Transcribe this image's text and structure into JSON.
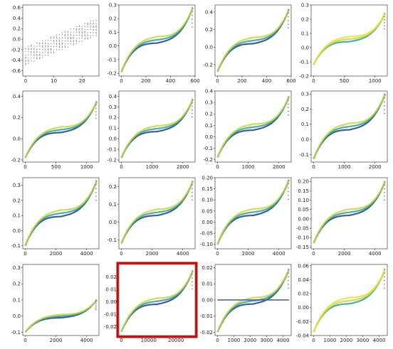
{
  "chart_data": [
    {
      "type": "scatter",
      "shape": "scatter",
      "xlim": [
        -1,
        26
      ],
      "xticks": [
        0,
        10,
        20
      ],
      "ylim": [
        -0.7,
        0.65
      ],
      "yticks": [
        "0.6",
        "0.4",
        "0.2",
        "0.0",
        "-0.2",
        "-0.4",
        "-0.6"
      ],
      "y_min": -0.55,
      "y_max": 0.55,
      "colors": [
        "#888888"
      ]
    },
    {
      "type": "scatter",
      "shape": "sigmoid",
      "xlim": [
        -20,
        600
      ],
      "xticks": [
        0,
        200,
        400,
        600
      ],
      "ylim": [
        -0.22,
        0.3
      ],
      "yticks": [
        "0.3",
        "0.2",
        "0.1",
        "0.0",
        "-0.1",
        "-0.2"
      ],
      "y_min": -0.19,
      "y_max": 0.28,
      "colors": [
        "#1e3f8a",
        "#2aa198",
        "#c6d63a"
      ]
    },
    {
      "type": "scatter",
      "shape": "sigmoid",
      "xlim": [
        -20,
        600
      ],
      "xticks": [
        0,
        200,
        400,
        600
      ],
      "ylim": [
        -0.33,
        0.48
      ],
      "yticks": [
        "0.4",
        "0.2",
        "0.0",
        "-0.2"
      ],
      "y_min": -0.28,
      "y_max": 0.43,
      "colors": [
        "#1e3f8a",
        "#2aa198",
        "#c6d63a"
      ]
    },
    {
      "type": "scatter",
      "shape": "sigmoid",
      "xlim": [
        -40,
        1200
      ],
      "xticks": [
        0,
        500,
        1000
      ],
      "ylim": [
        -0.2,
        0.3
      ],
      "yticks": [
        "0.3",
        "0.2",
        "0.1",
        "0.0",
        "-0.1",
        "-0.2"
      ],
      "y_min": -0.12,
      "y_max": 0.24,
      "colors": [
        "#2aa198",
        "#c6d63a",
        "#e8e03a"
      ]
    },
    {
      "type": "scatter",
      "shape": "sigmoid",
      "xlim": [
        -40,
        1200
      ],
      "xticks": [
        0,
        500,
        1000
      ],
      "ylim": [
        -0.22,
        0.45
      ],
      "yticks": [
        "0.4",
        "0.2",
        "0.0",
        "-0.2"
      ],
      "y_min": -0.18,
      "y_max": 0.35,
      "colors": [
        "#1e3f8a",
        "#2aa198",
        "#c6d63a"
      ]
    },
    {
      "type": "scatter",
      "shape": "sigmoid",
      "xlim": [
        -80,
        2400
      ],
      "xticks": [
        0,
        1000,
        2000
      ],
      "ylim": [
        -0.22,
        0.45
      ],
      "yticks": [
        "0.4",
        "0.3",
        "0.2",
        "0.1",
        "0.0",
        "-0.1",
        "-0.2"
      ],
      "y_min": -0.18,
      "y_max": 0.37,
      "colors": [
        "#1e3f8a",
        "#2aa198",
        "#c6d63a"
      ]
    },
    {
      "type": "scatter",
      "shape": "sigmoid",
      "xlim": [
        -80,
        2400
      ],
      "xticks": [
        0,
        1000,
        2000
      ],
      "ylim": [
        -0.22,
        0.4
      ],
      "yticks": [
        "0.4",
        "0.3",
        "0.2",
        "0.1",
        "0.0",
        "-0.1",
        "-0.2"
      ],
      "y_min": -0.18,
      "y_max": 0.35,
      "colors": [
        "#1e3f8a",
        "#2aa198",
        "#c6d63a"
      ]
    },
    {
      "type": "scatter",
      "shape": "sigmoid",
      "xlim": [
        -80,
        2400
      ],
      "xticks": [
        0,
        1000,
        2000
      ],
      "ylim": [
        -0.15,
        0.32
      ],
      "yticks": [
        "0.3",
        "0.2",
        "0.1",
        "0.0",
        "-0.1"
      ],
      "y_min": -0.13,
      "y_max": 0.3,
      "colors": [
        "#1e3f8a",
        "#2aa198",
        "#c6d63a"
      ]
    },
    {
      "type": "scatter",
      "shape": "sigmoid",
      "xlim": [
        -160,
        4800
      ],
      "xticks": [
        0,
        2000,
        4000
      ],
      "ylim": [
        -0.12,
        0.35
      ],
      "yticks": [
        "0.3",
        "0.2",
        "0.1",
        "0.0",
        "-0.1"
      ],
      "y_min": -0.1,
      "y_max": 0.33,
      "colors": [
        "#1e3f8a",
        "#2aa198",
        "#c6d63a"
      ]
    },
    {
      "type": "scatter",
      "shape": "sigmoid",
      "xlim": [
        -160,
        4800
      ],
      "xticks": [
        0,
        2000,
        4000
      ],
      "ylim": [
        -0.15,
        0.25
      ],
      "yticks": [
        "0.2",
        "0.1",
        "0.0",
        "-0.1"
      ],
      "y_min": -0.12,
      "y_max": 0.23,
      "colors": [
        "#1e3f8a",
        "#2aa198",
        "#c6d63a"
      ]
    },
    {
      "type": "scatter",
      "shape": "sigmoid",
      "xlim": [
        -160,
        4800
      ],
      "xticks": [
        0,
        2000,
        4000
      ],
      "ylim": [
        -0.12,
        0.2
      ],
      "yticks": [
        "0.20",
        "0.15",
        "0.10",
        "0.05",
        "0.00",
        "-0.05",
        "-0.10"
      ],
      "y_min": -0.1,
      "y_max": 0.19,
      "colors": [
        "#1e3f8a",
        "#2aa198",
        "#c6d63a"
      ]
    },
    {
      "type": "scatter",
      "shape": "sigmoid",
      "xlim": [
        -160,
        4800
      ],
      "xticks": [
        0,
        2000,
        4000
      ],
      "ylim": [
        -0.16,
        0.22
      ],
      "yticks": [
        "0.20",
        "0.15",
        "0.10",
        "0.05",
        "0.00",
        "-0.05",
        "-0.10",
        "-0.15"
      ],
      "y_min": -0.13,
      "y_max": 0.2,
      "colors": [
        "#1e3f8a",
        "#2aa198",
        "#c6d63a"
      ]
    },
    {
      "type": "scatter",
      "shape": "sigmoid",
      "xlim": [
        -160,
        4800
      ],
      "xticks": [
        0,
        2000,
        4000
      ],
      "ylim": [
        -0.12,
        0.32
      ],
      "yticks": [
        "0.3",
        "0.2",
        "0.1",
        "0.0",
        "-0.1"
      ],
      "y_min": -0.1,
      "y_max": 0.1,
      "colors": [
        "#1e3f8a",
        "#2aa198",
        "#c6d63a"
      ]
    },
    {
      "type": "scatter",
      "shape": "sigmoid",
      "highlight": true,
      "xlim": [
        -900,
        27000
      ],
      "xticks": [
        0,
        10000,
        20000
      ],
      "ylim": [
        -0.027,
        0.03
      ],
      "yticks": [
        "0.02",
        "0.01",
        "0.00",
        "-0.01",
        "-0.02"
      ],
      "y_min": -0.024,
      "y_max": 0.025,
      "colors": [
        "#1e3f8a",
        "#2aa198",
        "#c6d63a"
      ]
    },
    {
      "type": "scatter",
      "shape": "sigmoid",
      "flatline": true,
      "xlim": [
        -150,
        4500
      ],
      "xticks": [
        0,
        1000,
        2000,
        3000,
        4000
      ],
      "ylim": [
        -0.022,
        0.022
      ],
      "yticks": [
        "0.02",
        "0.01",
        "0.00",
        "-0.01",
        "-0.02"
      ],
      "y_min": -0.02,
      "y_max": 0.019,
      "colors": [
        "#1e3f8a",
        "#2aa198",
        "#c6d63a"
      ]
    },
    {
      "type": "scatter",
      "shape": "sigmoid",
      "xlim": [
        -150,
        4500
      ],
      "xticks": [
        0,
        1000,
        2000,
        3000,
        4000
      ],
      "ylim": [
        -0.04,
        0.062
      ],
      "yticks": [
        "0.06",
        "0.04",
        "0.02",
        "0.00",
        "-0.02",
        "-0.04"
      ],
      "y_min": -0.035,
      "y_max": 0.055,
      "colors": [
        "#2aa198",
        "#c6d63a",
        "#e8e03a"
      ]
    }
  ]
}
